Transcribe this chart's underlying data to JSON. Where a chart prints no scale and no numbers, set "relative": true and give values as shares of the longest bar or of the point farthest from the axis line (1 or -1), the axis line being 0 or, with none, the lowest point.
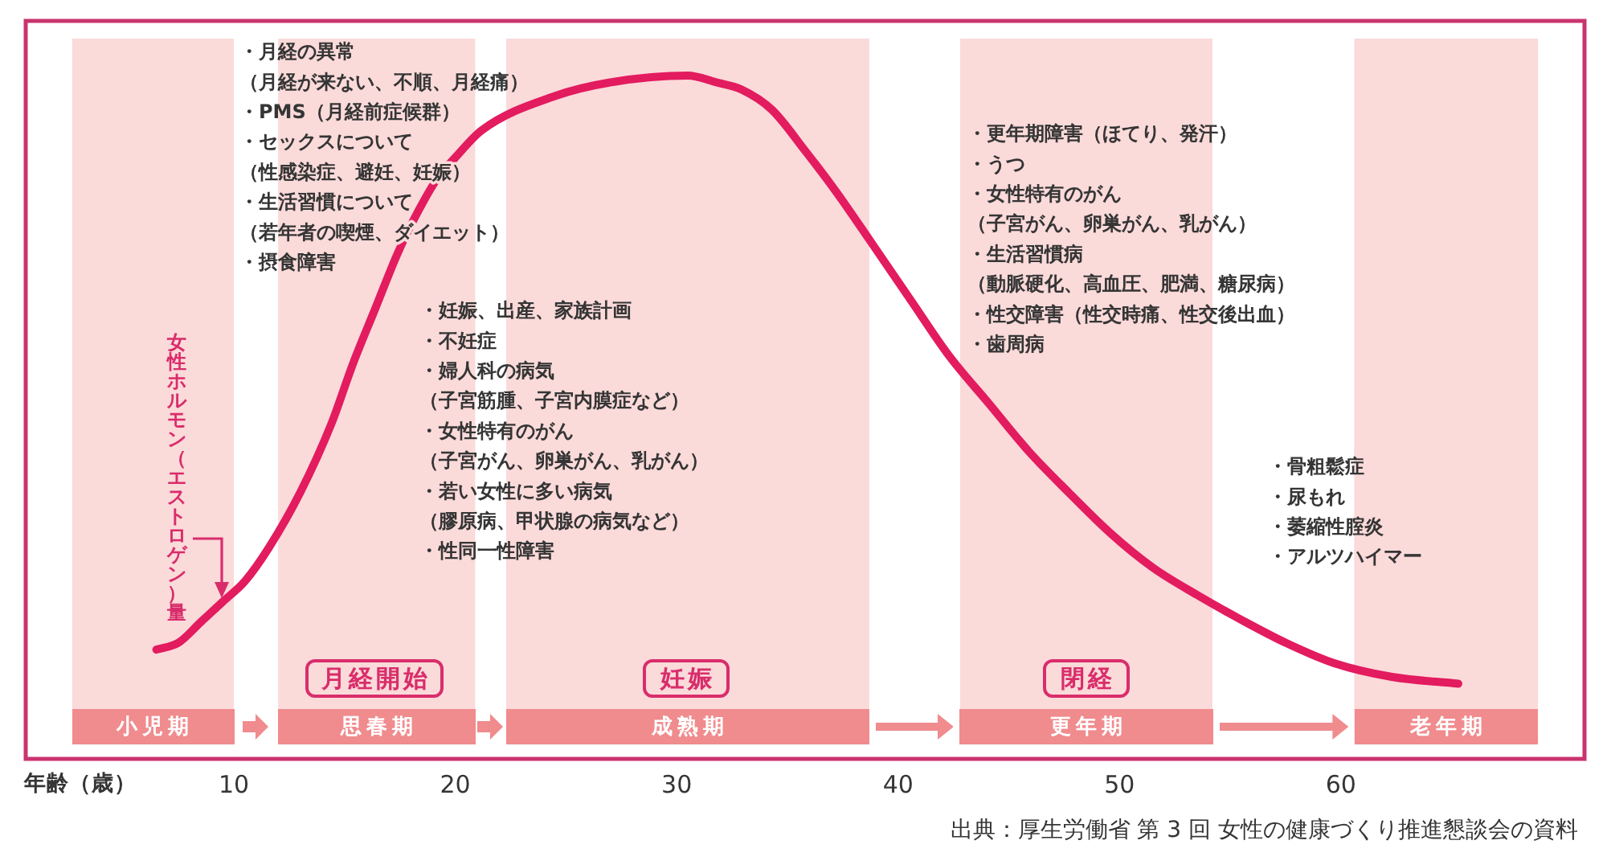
{
  "chart_data": {
    "type": "line",
    "relative": true,
    "marker": "none",
    "color": "#e31b5f",
    "x": [
      6.5,
      7.5,
      8.5,
      9.5,
      10.5,
      11.6,
      13.0,
      14.4,
      15.4,
      16.4,
      17.4,
      18.3,
      19.2,
      20.0,
      21.2,
      24.5,
      27.0,
      30.5,
      31.8,
      32.9,
      34.3,
      35.8,
      37.2,
      38.7,
      40.6,
      42.3,
      44.1,
      45.9,
      47.7,
      49.6,
      51.5,
      53.5,
      55.7,
      57.5,
      59.7,
      62.3,
      65.3
    ],
    "values": [
      0.16,
      0.17,
      0.2,
      0.23,
      0.26,
      0.31,
      0.39,
      0.49,
      0.58,
      0.66,
      0.74,
      0.8,
      0.85,
      0.88,
      0.92,
      0.97,
      0.99,
      1,
      0.99,
      0.98,
      0.95,
      0.89,
      0.83,
      0.76,
      0.67,
      0.59,
      0.52,
      0.45,
      0.39,
      0.33,
      0.28,
      0.24,
      0.2,
      0.17,
      0.14,
      0.12,
      0.11
    ],
    "xlim": [
      0.6,
      71
    ],
    "xticks": [
      10,
      20,
      30,
      40,
      50,
      60
    ],
    "xlabel": "年齢（歳）",
    "ylabel": "女性ホルモン（エストロゲン）量",
    "bands": [
      {
        "axis": "x",
        "from": 2.7,
        "to": 10,
        "label": "小児期",
        "color": "#fbdada"
      },
      {
        "axis": "x",
        "from": 12,
        "to": 20.9,
        "label": "思春期",
        "color": "#fbdada"
      },
      {
        "axis": "x",
        "from": 22.3,
        "to": 38.7,
        "label": "成熟期",
        "color": "#fbdada"
      },
      {
        "axis": "x",
        "from": 42.8,
        "to": 54.2,
        "label": "更年期",
        "color": "#fbdada"
      },
      {
        "axis": "x",
        "from": 60.6,
        "to": 68.9,
        "label": "老年期",
        "color": "#fbdada"
      }
    ],
    "annotations": [
      "・月経の異常",
      "（月経が来ない、不順、月経痛）",
      "・PMS（月経前症候群）",
      "・セックスについて",
      "（性感染症、避妊、妊娠）",
      "・生活習慣について",
      "（若年者の喫煙、ダイエット）",
      "・摂食障害",
      "・妊娠、出産、家族計画",
      "・不妊症",
      "・婦人科の病気",
      "（子宮筋腫、子宮内膜症など）",
      "・女性特有のがん",
      "（子宮がん、卵巣がん、乳がん）",
      "・若い女性に多い病気",
      "（膠原病、甲状腺の病気など）",
      "・性同一性障害",
      "・更年期障害（ほてり、発汗）",
      "・うつ",
      "・女性特有のがん",
      "（子宮がん、卵巣がん、乳がん）",
      "・生活習慣病",
      "（動脈硬化、高血圧、肥満、糖尿病）",
      "・性交障害（性交時痛、性交後出血）",
      "・歯周病",
      "・骨粗鬆症",
      "・尿もれ",
      "・萎縮性腟炎",
      "・アルツハイマー",
      "月経開始",
      "妊娠",
      "閉経",
      "出典：厚生労働省 第 3 回 女性の健康づくり推進懇談会の資料"
    ]
  }
}
